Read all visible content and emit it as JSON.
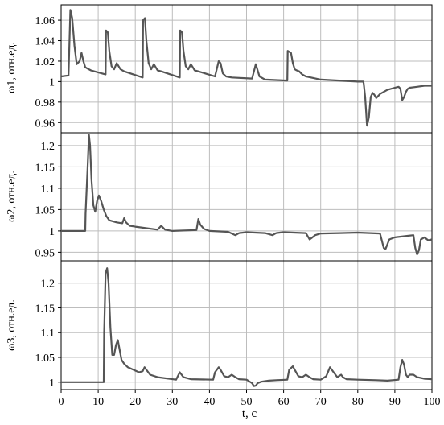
{
  "colors": {
    "line": "#555555",
    "grid": "#bdbdbd",
    "axis": "#000000"
  },
  "chart_data": [
    {
      "type": "line",
      "ylabel": "ω1, отн.ед.",
      "xlim": [
        0,
        100
      ],
      "ylim": [
        0.95,
        1.075
      ],
      "ytick_labels": [
        "1.06",
        "1.04",
        "1.02",
        "1",
        "0.98",
        "0.96"
      ],
      "ytick_values": [
        1.06,
        1.04,
        1.02,
        1.0,
        0.98,
        0.96
      ],
      "grid": true,
      "series": [
        {
          "x": [
            0,
            2.0,
            2.5,
            3.0,
            3.6,
            4.2,
            5.0,
            5.5,
            6.0,
            6.5,
            7.0,
            8.0,
            12.0,
            12.1,
            12.6,
            13.0,
            13.6,
            14.3,
            15.0,
            15.5,
            16.0,
            17.0,
            22.0,
            22.1,
            22.6,
            23.0,
            23.6,
            24.3,
            25.0,
            25.5,
            26.0,
            27.0,
            32.0,
            32.1,
            32.6,
            33.0,
            33.6,
            34.3,
            35.0,
            35.5,
            36.0,
            37.0,
            41.5,
            42.5,
            43.0,
            43.6,
            44.5,
            46.0,
            51.5,
            52.5,
            53.5,
            55.0,
            61.0,
            61.1,
            62.0,
            62.5,
            63.0,
            63.5,
            64.2,
            65.0,
            66.0,
            70.0,
            75.0,
            80.0,
            81.5,
            81.6,
            82.0,
            82.5,
            83.0,
            83.5,
            84.0,
            84.5,
            85.0,
            86.0,
            88.0,
            90.0,
            91.0,
            91.5,
            92.0,
            92.5,
            93.0,
            93.5,
            94.0,
            96.0,
            98.0,
            100.0
          ],
          "y": [
            1.005,
            1.006,
            1.07,
            1.062,
            1.035,
            1.017,
            1.02,
            1.028,
            1.02,
            1.014,
            1.013,
            1.011,
            1.007,
            1.05,
            1.048,
            1.03,
            1.015,
            1.012,
            1.018,
            1.015,
            1.012,
            1.01,
            1.004,
            1.06,
            1.062,
            1.04,
            1.018,
            1.012,
            1.017,
            1.014,
            1.011,
            1.01,
            1.004,
            1.05,
            1.048,
            1.03,
            1.015,
            1.012,
            1.017,
            1.014,
            1.011,
            1.01,
            1.005,
            1.02,
            1.018,
            1.008,
            1.005,
            1.004,
            1.003,
            1.017,
            1.005,
            1.002,
            1.001,
            1.03,
            1.028,
            1.018,
            1.012,
            1.011,
            1.01,
            1.007,
            1.005,
            1.002,
            1.001,
            1.0,
            1.0,
            0.998,
            0.985,
            0.957,
            0.965,
            0.985,
            0.989,
            0.987,
            0.984,
            0.988,
            0.992,
            0.994,
            0.995,
            0.993,
            0.982,
            0.985,
            0.99,
            0.993,
            0.994,
            0.995,
            0.996,
            0.996
          ]
        }
      ]
    },
    {
      "type": "line",
      "ylabel": "ω2, отн.ед.",
      "xlim": [
        0,
        100
      ],
      "ylim": [
        0.93,
        1.23
      ],
      "ytick_labels": [
        "1.2",
        "1.15",
        "1.1",
        "1.05",
        "1",
        "0.95"
      ],
      "ytick_values": [
        1.2,
        1.15,
        1.1,
        1.05,
        1.0,
        0.95
      ],
      "grid": true,
      "series": [
        {
          "x": [
            0,
            6.5,
            6.6,
            7.2,
            7.5,
            7.8,
            8.2,
            8.7,
            9.2,
            9.7,
            10.2,
            10.8,
            11.5,
            12.2,
            13.0,
            15.0,
            16.5,
            17.0,
            17.5,
            18.5,
            20.0,
            26.0,
            27.0,
            28.0,
            30.0,
            36.5,
            37.0,
            37.5,
            38.5,
            40.0,
            45.0,
            47.0,
            48.0,
            50.0,
            55.0,
            57.0,
            58.0,
            59.0,
            60.0,
            66.0,
            67.0,
            67.5,
            68.5,
            70.0,
            75.0,
            80.0,
            86.0,
            87.0,
            87.5,
            88.5,
            90.0,
            95.0,
            95.5,
            96.0,
            96.5,
            97.0,
            98.0,
            99.0,
            100.0
          ],
          "y": [
            1.0,
            1.0,
            1.04,
            1.16,
            1.225,
            1.2,
            1.12,
            1.06,
            1.045,
            1.07,
            1.083,
            1.07,
            1.05,
            1.035,
            1.025,
            1.02,
            1.018,
            1.03,
            1.02,
            1.012,
            1.01,
            1.003,
            1.012,
            1.003,
            1.0,
            1.002,
            1.028,
            1.015,
            1.005,
            1.0,
            0.998,
            0.99,
            0.995,
            0.997,
            0.995,
            0.99,
            0.995,
            0.996,
            0.997,
            0.995,
            0.98,
            0.983,
            0.99,
            0.994,
            0.995,
            0.996,
            0.994,
            0.96,
            0.958,
            0.98,
            0.985,
            0.99,
            0.96,
            0.945,
            0.955,
            0.98,
            0.985,
            0.978,
            0.98
          ]
        }
      ]
    },
    {
      "type": "line",
      "ylabel": "ω3, отн.ед.",
      "xlim": [
        0,
        100
      ],
      "xlabel": "t, с",
      "xtick_labels": [
        "0",
        "10",
        "20",
        "30",
        "40",
        "50",
        "60",
        "70",
        "80",
        "90",
        "100"
      ],
      "xtick_values": [
        0,
        10,
        20,
        30,
        40,
        50,
        60,
        70,
        80,
        90,
        100
      ],
      "ylim": [
        0.985,
        1.245
      ],
      "ytick_labels": [
        "1.2",
        "1.15",
        "1.1",
        "1.05",
        "1"
      ],
      "ytick_values": [
        1.2,
        1.15,
        1.1,
        1.05,
        1.0
      ],
      "grid": true,
      "series": [
        {
          "x": [
            0,
            11.5,
            11.6,
            12.0,
            12.4,
            12.8,
            13.3,
            13.8,
            14.3,
            14.8,
            15.3,
            15.8,
            16.3,
            17.0,
            18.0,
            19.5,
            21.0,
            22.0,
            22.5,
            23.0,
            24.0,
            26.0,
            31.0,
            32.0,
            33.0,
            35.0,
            41.0,
            41.5,
            42.5,
            43.0,
            44.0,
            45.0,
            46.0,
            47.0,
            48.0,
            50.0,
            51.5,
            52.0,
            52.5,
            53.0,
            54.0,
            56.0,
            58.0,
            61.0,
            61.5,
            62.5,
            63.0,
            64.0,
            65.0,
            66.0,
            67.0,
            68.0,
            70.0,
            71.5,
            72.5,
            73.5,
            74.5,
            75.5,
            76.0,
            77.0,
            80.0,
            85.0,
            88.0,
            91.0,
            91.5,
            92.0,
            92.5,
            93.0,
            93.5,
            94.0,
            95.0,
            96.0,
            98.0,
            100.0
          ],
          "y": [
            1.0,
            1.0,
            1.1,
            1.22,
            1.23,
            1.2,
            1.11,
            1.055,
            1.055,
            1.075,
            1.085,
            1.065,
            1.045,
            1.037,
            1.03,
            1.025,
            1.02,
            1.022,
            1.03,
            1.025,
            1.015,
            1.01,
            1.005,
            1.02,
            1.01,
            1.006,
            1.005,
            1.02,
            1.03,
            1.025,
            1.012,
            1.01,
            1.015,
            1.01,
            1.006,
            1.005,
            0.998,
            0.992,
            0.993,
            0.998,
            1.001,
            1.003,
            1.004,
            1.005,
            1.025,
            1.032,
            1.025,
            1.012,
            1.01,
            1.015,
            1.01,
            1.006,
            1.005,
            1.012,
            1.03,
            1.02,
            1.01,
            1.015,
            1.01,
            1.006,
            1.005,
            1.004,
            1.003,
            1.005,
            1.03,
            1.045,
            1.035,
            1.015,
            1.01,
            1.015,
            1.015,
            1.01,
            1.007,
            1.006
          ]
        }
      ]
    }
  ]
}
